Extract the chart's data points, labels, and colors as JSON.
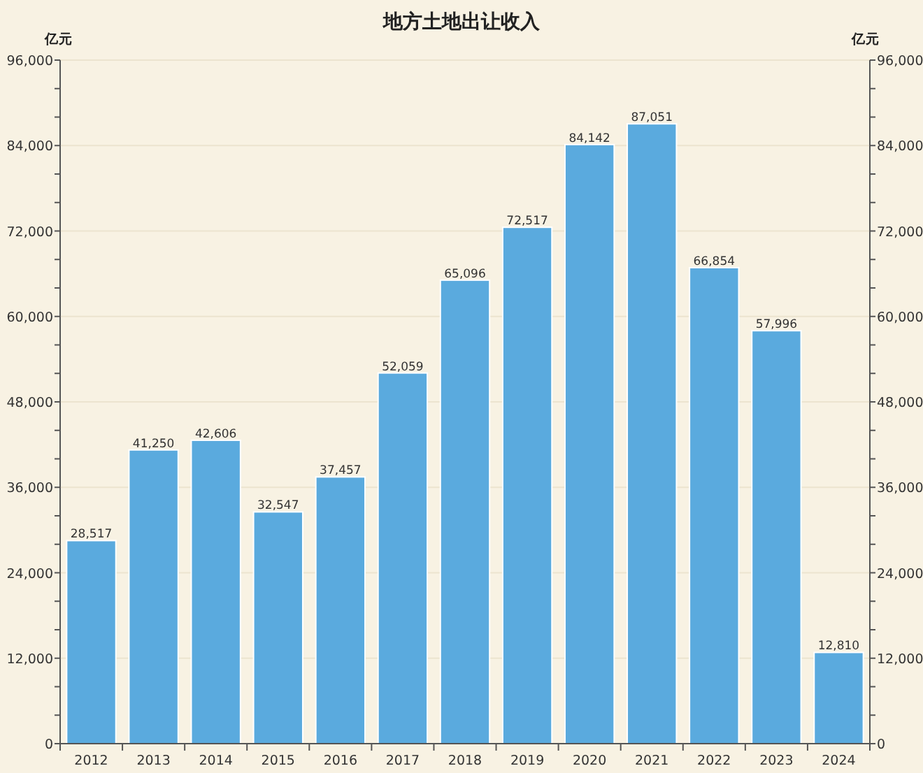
{
  "chart_data": {
    "type": "bar",
    "title": "地方土地出让收入",
    "ylabel": "亿元",
    "y2label": "亿元",
    "categories": [
      "2012",
      "2013",
      "2014",
      "2015",
      "2016",
      "2017",
      "2018",
      "2019",
      "2020",
      "2021",
      "2022",
      "2023",
      "2024"
    ],
    "values": [
      28517,
      41250,
      42606,
      32547,
      37457,
      52059,
      65096,
      72517,
      84142,
      87051,
      66854,
      57996,
      12810
    ],
    "value_labels": [
      "28,517",
      "41,250",
      "42,606",
      "32,547",
      "37,457",
      "52,059",
      "65,096",
      "72,517",
      "84,142",
      "87,051",
      "66,854",
      "57,996",
      "12,810"
    ],
    "color": "#5aaade",
    "ylim": [
      0,
      96000
    ],
    "yticks": [
      0,
      {
        "value": 4000,
        "label": null
      },
      {
        "value": 8000,
        "label": null
      },
      {
        "value": 12000,
        "label": "12,000"
      },
      {
        "value": 16000,
        "label": null
      },
      {
        "value": 20000,
        "label": null
      },
      {
        "value": 24000,
        "label": "24,000"
      },
      {
        "value": 28000,
        "label": null
      },
      {
        "value": 32000,
        "label": null
      },
      {
        "value": 36000,
        "label": "36,000"
      },
      {
        "value": 40000,
        "label": null
      },
      {
        "value": 44000,
        "label": null
      },
      {
        "value": 48000,
        "label": "48,000"
      },
      {
        "value": 52000,
        "label": null
      },
      {
        "value": 56000,
        "label": null
      },
      {
        "value": 60000,
        "label": "60,000"
      },
      {
        "value": 64000,
        "label": null
      },
      {
        "value": 68000,
        "label": null
      },
      {
        "value": 72000,
        "label": "72,000"
      },
      {
        "value": 76000,
        "label": null
      },
      {
        "value": 80000,
        "label": null
      },
      {
        "value": 84000,
        "label": "84,000"
      },
      {
        "value": 88000,
        "label": null
      },
      {
        "value": 92000,
        "label": null
      },
      {
        "value": 96000,
        "label": "96,000"
      }
    ],
    "y2lim": [
      0,
      96000
    ],
    "y2ticks": [
      0,
      {
        "value": 4000,
        "label": null
      },
      {
        "value": 8000,
        "label": null
      },
      {
        "value": 12000,
        "label": "12,000"
      },
      {
        "value": 16000,
        "label": null
      },
      {
        "value": 20000,
        "label": null
      },
      {
        "value": 24000,
        "label": "24,000"
      },
      {
        "value": 28000,
        "label": null
      },
      {
        "value": 32000,
        "label": null
      },
      {
        "value": 36000,
        "label": "36,000"
      },
      {
        "value": 40000,
        "label": null
      },
      {
        "value": 44000,
        "label": null
      },
      {
        "value": 48000,
        "label": "48,000"
      },
      {
        "value": 52000,
        "label": null
      },
      {
        "value": 56000,
        "label": null
      },
      {
        "value": 60000,
        "label": "60,000"
      },
      {
        "value": 64000,
        "label": null
      },
      {
        "value": 68000,
        "label": null
      },
      {
        "value": 72000,
        "label": "72,000"
      },
      {
        "value": 76000,
        "label": null
      },
      {
        "value": 80000,
        "label": null
      },
      {
        "value": 84000,
        "label": "84,000"
      },
      {
        "value": 88000,
        "label": null
      },
      {
        "value": 92000,
        "label": null
      },
      {
        "value": 96000,
        "label": "96,000"
      }
    ],
    "grid": "y"
  }
}
